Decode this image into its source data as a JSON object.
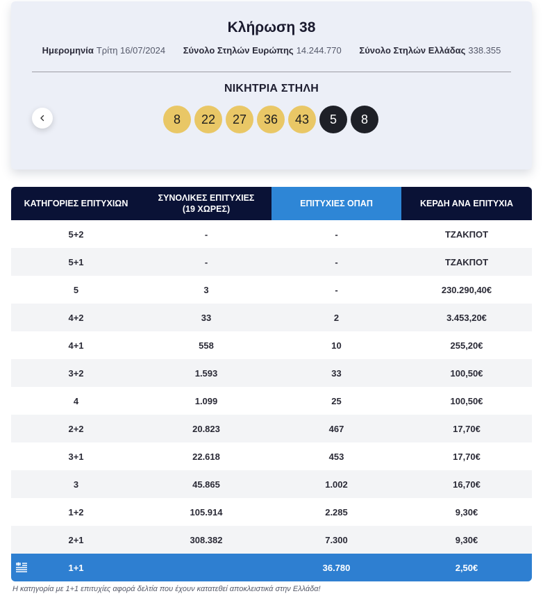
{
  "draw": {
    "title": "Κλήρωση 38",
    "date_label": "Ημερομηνία",
    "date_value": "Τρίτη 16/07/2024",
    "europe_label": "Σύνολο Στηλών Ευρώπης",
    "europe_value": "14.244.770",
    "greece_label": "Σύνολο Στηλών Ελλάδας",
    "greece_value": "338.355",
    "winning_label": "ΝΙΚΗΤΡΙΑ ΣΤΗΛΗ",
    "numbers": [
      "8",
      "22",
      "27",
      "36",
      "43"
    ],
    "stars": [
      "5",
      "8"
    ],
    "colors": {
      "number_ball": "#e9c766",
      "star_ball": "#1e2027"
    }
  },
  "table": {
    "headers": {
      "category": "ΚΑΤΗΓΟΡΙΕΣ ΕΠΙΤΥΧΙΩΝ",
      "total": "ΣΥΝΟΛΙΚΕΣ ΕΠΙΤΥΧΙΕΣ",
      "total_sub": "(19 ΧΩΡΕΣ)",
      "opap": "ΕΠΙΤΥΧΙΕΣ ΟΠΑΠ",
      "prize": "ΚΕΡΔΗ ΑΝΑ ΕΠΙΤΥΧΙΑ"
    },
    "rows": [
      {
        "category": "5+2",
        "total": "-",
        "opap": "-",
        "prize": "ΤΖΑΚΠΟΤ"
      },
      {
        "category": "5+1",
        "total": "-",
        "opap": "-",
        "prize": "ΤΖΑΚΠΟΤ"
      },
      {
        "category": "5",
        "total": "3",
        "opap": "-",
        "prize": "230.290,40€"
      },
      {
        "category": "4+2",
        "total": "33",
        "opap": "2",
        "prize": "3.453,20€"
      },
      {
        "category": "4+1",
        "total": "558",
        "opap": "10",
        "prize": "255,20€"
      },
      {
        "category": "3+2",
        "total": "1.593",
        "opap": "33",
        "prize": "100,50€"
      },
      {
        "category": "4",
        "total": "1.099",
        "opap": "25",
        "prize": "100,50€"
      },
      {
        "category": "2+2",
        "total": "20.823",
        "opap": "467",
        "prize": "17,70€"
      },
      {
        "category": "3+1",
        "total": "22.618",
        "opap": "453",
        "prize": "17,70€"
      },
      {
        "category": "3",
        "total": "45.865",
        "opap": "1.002",
        "prize": "16,70€"
      },
      {
        "category": "1+2",
        "total": "105.914",
        "opap": "2.285",
        "prize": "9,30€"
      },
      {
        "category": "2+1",
        "total": "308.382",
        "opap": "7.300",
        "prize": "9,30€"
      }
    ],
    "highlight_row": {
      "category": "1+1",
      "total": "",
      "opap": "36.780",
      "prize": "2,50€"
    },
    "colors": {
      "header_dark": "#0a1236",
      "header_blue": "#2e86d6",
      "highlight": "#2e7fd1"
    }
  },
  "footnote": "Η κατηγορία με 1+1 επιτυχίες αφορά δελτία που έχουν κατατεθεί αποκλειστικά στην Ελλάδα!",
  "icons": {
    "prev": "chevron-left-icon",
    "highlight_row": "greece-flag-icon"
  }
}
